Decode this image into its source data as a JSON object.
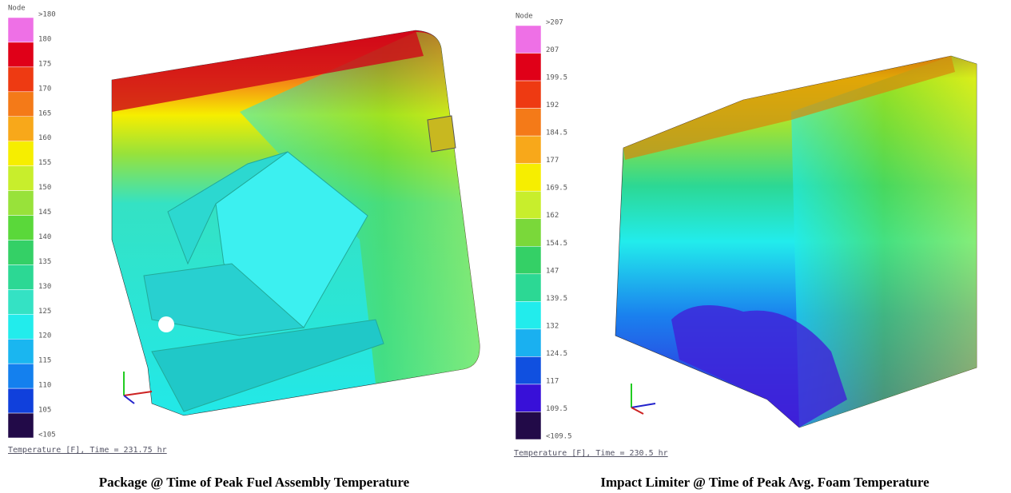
{
  "panels": [
    {
      "legend": {
        "title": "Node",
        "labels": [
          ">180",
          "180",
          "175",
          "170",
          "165",
          "160",
          "155",
          "150",
          "145",
          "140",
          "135",
          "130",
          "125",
          "120",
          "115",
          "110",
          "105",
          "<105"
        ],
        "colors": [
          "#ee70e6",
          "#e00018",
          "#ee3a12",
          "#f47a18",
          "#f8a81a",
          "#f6ee00",
          "#c8ee2c",
          "#98e23a",
          "#5ad83a",
          "#34d066",
          "#2cd894",
          "#34e2c4",
          "#22ecec",
          "#1ab6f0",
          "#1480ee",
          "#1040dc",
          "#220a48"
        ]
      },
      "footer": "Temperature [F], Time = 231.75 hr",
      "caption": "Package @ Time of Peak Fuel Assembly Temperature"
    },
    {
      "legend": {
        "title": "Node",
        "labels": [
          ">207",
          "207",
          "199.5",
          "192",
          "184.5",
          "177",
          "169.5",
          "162",
          "154.5",
          "147",
          "139.5",
          "132",
          "124.5",
          "117",
          "109.5",
          "<109.5"
        ],
        "colors": [
          "#ee70e6",
          "#e00018",
          "#ee3a12",
          "#f47a18",
          "#f8a81a",
          "#f6ee00",
          "#c8ee2c",
          "#7ad83a",
          "#34d066",
          "#2cd894",
          "#22ecec",
          "#1ab0f0",
          "#1050e0",
          "#3810d8",
          "#220a48"
        ]
      },
      "footer": "Temperature [F], Time = 230.5 hr",
      "caption": "Impact Limiter @ Time of Peak Avg. Foam Temperature"
    }
  ]
}
